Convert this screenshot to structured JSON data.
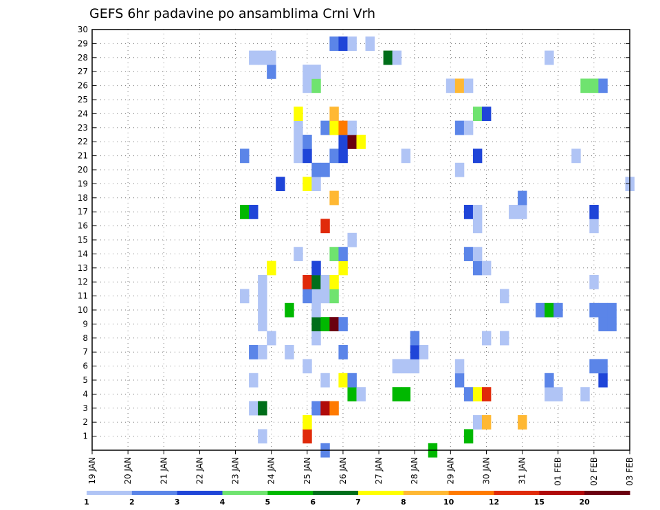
{
  "chart_data": {
    "type": "heatmap",
    "title": "GEFS 6hr padavine po ansamblima Crni Vrh",
    "y_ticks": [
      "1",
      "2",
      "3",
      "4",
      "5",
      "6",
      "7",
      "8",
      "9",
      "10",
      "11",
      "12",
      "13",
      "14",
      "15",
      "16",
      "17",
      "18",
      "19",
      "20",
      "21",
      "22",
      "23",
      "24",
      "25",
      "26",
      "27",
      "28",
      "29",
      "30"
    ],
    "y_range": [
      0,
      30
    ],
    "x_ticks": [
      "19 JAN",
      "20 JAN",
      "21 JAN",
      "22 JAN",
      "23 JAN",
      "24 JAN",
      "25 JAN",
      "26 JAN",
      "27 JAN",
      "28 JAN",
      "29 JAN",
      "30 JAN",
      "31 JAN",
      "01 FEB",
      "02 FEB",
      "03 FEB"
    ],
    "x_range_days": [
      0,
      15
    ],
    "grid": true,
    "legend": {
      "placement": "bottom",
      "colors": [
        "#b0c4f5",
        "#5b85e8",
        "#1f45d8",
        "#6fe36f",
        "#00b800",
        "#006e1a",
        "#ffff00",
        "#ffb833",
        "#ff7a00",
        "#e02a0a",
        "#b00a0a",
        "#6a0010"
      ],
      "labels": [
        "1",
        "2",
        "3",
        "4",
        "5",
        "6",
        "7",
        "8",
        "10",
        "12",
        "15",
        "20"
      ]
    },
    "cells": [
      {
        "d": 6.5,
        "m": 0,
        "c": 1
      },
      {
        "d": 9.5,
        "m": 0,
        "c": 4
      },
      {
        "d": 4.75,
        "m": 1,
        "c": 0
      },
      {
        "d": 6.0,
        "m": 1,
        "c": 9
      },
      {
        "d": 10.5,
        "m": 1,
        "c": 4
      },
      {
        "d": 6.0,
        "m": 2,
        "c": 6
      },
      {
        "d": 10.75,
        "m": 2,
        "c": 0
      },
      {
        "d": 11.0,
        "m": 2,
        "c": 7
      },
      {
        "d": 12.0,
        "m": 2,
        "c": 7
      },
      {
        "d": 4.5,
        "m": 3,
        "c": 0
      },
      {
        "d": 4.75,
        "m": 3,
        "c": 5
      },
      {
        "d": 6.25,
        "m": 3,
        "c": 1
      },
      {
        "d": 6.5,
        "m": 3,
        "c": 10
      },
      {
        "d": 6.75,
        "m": 3,
        "c": 8
      },
      {
        "d": 7.25,
        "m": 4,
        "c": 4
      },
      {
        "d": 7.5,
        "m": 4,
        "c": 0
      },
      {
        "d": 8.5,
        "m": 4,
        "c": 4
      },
      {
        "d": 8.75,
        "m": 4,
        "c": 4
      },
      {
        "d": 10.5,
        "m": 4,
        "c": 1
      },
      {
        "d": 10.75,
        "m": 4,
        "c": 6
      },
      {
        "d": 11.0,
        "m": 4,
        "c": 9
      },
      {
        "d": 12.75,
        "m": 4,
        "c": 0
      },
      {
        "d": 13.0,
        "m": 4,
        "c": 0
      },
      {
        "d": 13.75,
        "m": 4,
        "c": 0
      },
      {
        "d": 4.5,
        "m": 5,
        "c": 0
      },
      {
        "d": 6.5,
        "m": 5,
        "c": 0
      },
      {
        "d": 7.0,
        "m": 5,
        "c": 6
      },
      {
        "d": 7.25,
        "m": 5,
        "c": 1
      },
      {
        "d": 10.25,
        "m": 5,
        "c": 1
      },
      {
        "d": 12.75,
        "m": 5,
        "c": 1
      },
      {
        "d": 14.25,
        "m": 5,
        "c": 2
      },
      {
        "d": 6.0,
        "m": 6,
        "c": 0
      },
      {
        "d": 8.5,
        "m": 6,
        "c": 0
      },
      {
        "d": 8.75,
        "m": 6,
        "c": 0
      },
      {
        "d": 9.0,
        "m": 6,
        "c": 0
      },
      {
        "d": 10.25,
        "m": 6,
        "c": 0
      },
      {
        "d": 14.0,
        "m": 6,
        "c": 1
      },
      {
        "d": 14.25,
        "m": 6,
        "c": 1
      },
      {
        "d": 4.5,
        "m": 7,
        "c": 1
      },
      {
        "d": 4.75,
        "m": 7,
        "c": 0
      },
      {
        "d": 5.5,
        "m": 7,
        "c": 0
      },
      {
        "d": 7.0,
        "m": 7,
        "c": 1
      },
      {
        "d": 9.0,
        "m": 7,
        "c": 2
      },
      {
        "d": 9.25,
        "m": 7,
        "c": 0
      },
      {
        "d": 5.0,
        "m": 8,
        "c": 0
      },
      {
        "d": 6.25,
        "m": 8,
        "c": 0
      },
      {
        "d": 9.0,
        "m": 8,
        "c": 1
      },
      {
        "d": 11.0,
        "m": 8,
        "c": 0
      },
      {
        "d": 11.5,
        "m": 8,
        "c": 0
      },
      {
        "d": 4.75,
        "m": 9,
        "c": 0
      },
      {
        "d": 6.25,
        "m": 9,
        "c": 5
      },
      {
        "d": 6.5,
        "m": 9,
        "c": 4
      },
      {
        "d": 6.75,
        "m": 9,
        "c": 11
      },
      {
        "d": 7.0,
        "m": 9,
        "c": 1
      },
      {
        "d": 14.25,
        "m": 9,
        "c": 1
      },
      {
        "d": 14.5,
        "m": 9,
        "c": 1
      },
      {
        "d": 4.75,
        "m": 10,
        "c": 0
      },
      {
        "d": 5.5,
        "m": 10,
        "c": 4
      },
      {
        "d": 6.25,
        "m": 10,
        "c": 0
      },
      {
        "d": 12.5,
        "m": 10,
        "c": 1
      },
      {
        "d": 12.75,
        "m": 10,
        "c": 4
      },
      {
        "d": 13.0,
        "m": 10,
        "c": 1
      },
      {
        "d": 14.0,
        "m": 10,
        "c": 1
      },
      {
        "d": 14.25,
        "m": 10,
        "c": 1
      },
      {
        "d": 14.5,
        "m": 10,
        "c": 1
      },
      {
        "d": 4.25,
        "m": 11,
        "c": 0
      },
      {
        "d": 4.75,
        "m": 11,
        "c": 0
      },
      {
        "d": 6.25,
        "m": 11,
        "c": 0
      },
      {
        "d": 6.0,
        "m": 11,
        "c": 1
      },
      {
        "d": 6.5,
        "m": 11,
        "c": 0
      },
      {
        "d": 6.75,
        "m": 11,
        "c": 3
      },
      {
        "d": 11.5,
        "m": 11,
        "c": 0
      },
      {
        "d": 4.75,
        "m": 12,
        "c": 0
      },
      {
        "d": 6.0,
        "m": 12,
        "c": 9
      },
      {
        "d": 6.25,
        "m": 12,
        "c": 5
      },
      {
        "d": 6.5,
        "m": 12,
        "c": 0
      },
      {
        "d": 6.75,
        "m": 12,
        "c": 6
      },
      {
        "d": 14.0,
        "m": 12,
        "c": 0
      },
      {
        "d": 5.0,
        "m": 13,
        "c": 6
      },
      {
        "d": 6.25,
        "m": 13,
        "c": 2
      },
      {
        "d": 7.0,
        "m": 13,
        "c": 6
      },
      {
        "d": 10.75,
        "m": 13,
        "c": 1
      },
      {
        "d": 11.0,
        "m": 13,
        "c": 0
      },
      {
        "d": 5.75,
        "m": 14,
        "c": 0
      },
      {
        "d": 6.75,
        "m": 14,
        "c": 3
      },
      {
        "d": 7.0,
        "m": 14,
        "c": 1
      },
      {
        "d": 10.5,
        "m": 14,
        "c": 1
      },
      {
        "d": 10.75,
        "m": 14,
        "c": 0
      },
      {
        "d": 7.25,
        "m": 15,
        "c": 0
      },
      {
        "d": 10.75,
        "m": 16,
        "c": 0
      },
      {
        "d": 14.0,
        "m": 16,
        "c": 0
      },
      {
        "d": 6.5,
        "m": 16,
        "c": 9
      },
      {
        "d": 4.25,
        "m": 17,
        "c": 4
      },
      {
        "d": 4.5,
        "m": 17,
        "c": 2
      },
      {
        "d": 10.5,
        "m": 17,
        "c": 2
      },
      {
        "d": 10.75,
        "m": 17,
        "c": 0
      },
      {
        "d": 11.75,
        "m": 17,
        "c": 0
      },
      {
        "d": 12.0,
        "m": 17,
        "c": 0
      },
      {
        "d": 14.0,
        "m": 17,
        "c": 2
      },
      {
        "d": 6.75,
        "m": 18,
        "c": 7
      },
      {
        "d": 12.0,
        "m": 18,
        "c": 1
      },
      {
        "d": 5.25,
        "m": 19,
        "c": 2
      },
      {
        "d": 6.0,
        "m": 19,
        "c": 6
      },
      {
        "d": 6.25,
        "m": 19,
        "c": 0
      },
      {
        "d": 15.0,
        "m": 19,
        "c": 0
      },
      {
        "d": 6.25,
        "m": 20,
        "c": 1
      },
      {
        "d": 6.5,
        "m": 20,
        "c": 1
      },
      {
        "d": 10.25,
        "m": 20,
        "c": 0
      },
      {
        "d": 4.25,
        "m": 21,
        "c": 1
      },
      {
        "d": 5.75,
        "m": 21,
        "c": 0
      },
      {
        "d": 6.0,
        "m": 21,
        "c": 2
      },
      {
        "d": 6.75,
        "m": 21,
        "c": 1
      },
      {
        "d": 7.0,
        "m": 21,
        "c": 2
      },
      {
        "d": 8.75,
        "m": 21,
        "c": 0
      },
      {
        "d": 10.75,
        "m": 21,
        "c": 2
      },
      {
        "d": 13.5,
        "m": 21,
        "c": 0
      },
      {
        "d": 5.75,
        "m": 22,
        "c": 0
      },
      {
        "d": 6.0,
        "m": 22,
        "c": 1
      },
      {
        "d": 7.0,
        "m": 22,
        "c": 2
      },
      {
        "d": 7.25,
        "m": 22,
        "c": 11
      },
      {
        "d": 7.5,
        "m": 22,
        "c": 6
      },
      {
        "d": 5.75,
        "m": 23,
        "c": 0
      },
      {
        "d": 6.5,
        "m": 23,
        "c": 1
      },
      {
        "d": 6.75,
        "m": 23,
        "c": 6
      },
      {
        "d": 7.0,
        "m": 23,
        "c": 8
      },
      {
        "d": 7.25,
        "m": 23,
        "c": 0
      },
      {
        "d": 10.25,
        "m": 23,
        "c": 1
      },
      {
        "d": 10.5,
        "m": 23,
        "c": 0
      },
      {
        "d": 5.75,
        "m": 24,
        "c": 6
      },
      {
        "d": 6.75,
        "m": 24,
        "c": 7
      },
      {
        "d": 10.75,
        "m": 24,
        "c": 3
      },
      {
        "d": 11.0,
        "m": 24,
        "c": 2
      },
      {
        "d": 6.0,
        "m": 26,
        "c": 0
      },
      {
        "d": 6.25,
        "m": 26,
        "c": 3
      },
      {
        "d": 10.0,
        "m": 26,
        "c": 0
      },
      {
        "d": 10.25,
        "m": 26,
        "c": 7
      },
      {
        "d": 10.5,
        "m": 26,
        "c": 0
      },
      {
        "d": 13.75,
        "m": 26,
        "c": 3
      },
      {
        "d": 14.0,
        "m": 26,
        "c": 3
      },
      {
        "d": 14.25,
        "m": 26,
        "c": 1
      },
      {
        "d": 5.0,
        "m": 27,
        "c": 1
      },
      {
        "d": 6.0,
        "m": 27,
        "c": 0
      },
      {
        "d": 6.25,
        "m": 27,
        "c": 0
      },
      {
        "d": 4.5,
        "m": 28,
        "c": 0
      },
      {
        "d": 4.75,
        "m": 28,
        "c": 0
      },
      {
        "d": 5.0,
        "m": 28,
        "c": 0
      },
      {
        "d": 8.25,
        "m": 28,
        "c": 5
      },
      {
        "d": 8.5,
        "m": 28,
        "c": 0
      },
      {
        "d": 12.75,
        "m": 28,
        "c": 0
      },
      {
        "d": 6.75,
        "m": 29,
        "c": 1
      },
      {
        "d": 7.0,
        "m": 29,
        "c": 2
      },
      {
        "d": 7.25,
        "m": 29,
        "c": 0
      },
      {
        "d": 7.75,
        "m": 29,
        "c": 0
      }
    ]
  }
}
